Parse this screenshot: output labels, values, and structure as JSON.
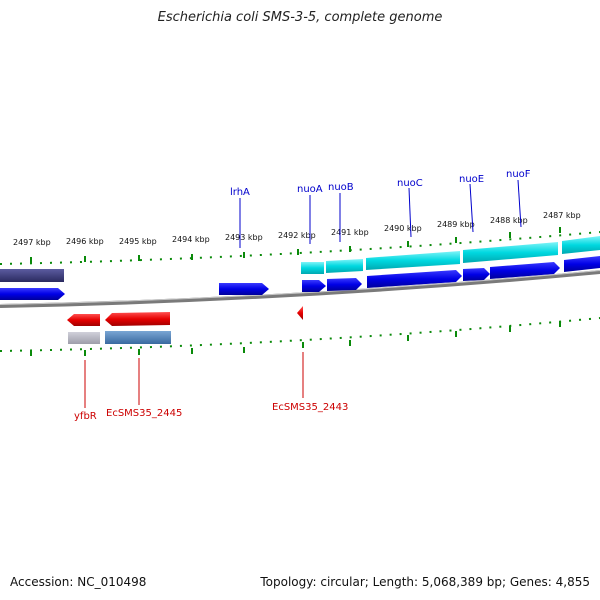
{
  "title": "Escherichia coli SMS-3-5, complete genome",
  "footer": {
    "accession": "Accession: NC_010498",
    "summary": "Topology: circular; Length: 5,068,389 bp; Genes: 4,855"
  },
  "ruler_labels": [
    "2497 kbp",
    "2496 kbp",
    "2495 kbp",
    "2494 kbp",
    "2493 kbp",
    "2492 kbp",
    "2491 kbp",
    "2490 kbp",
    "2489 kbp",
    "2488 kbp",
    "2487 kbp"
  ],
  "genes_top": [
    "lrhA",
    "nuoA",
    "nuoB",
    "nuoC",
    "nuoE",
    "nuoF"
  ],
  "genes_bottom": [
    "yfbR",
    "EcSMS35_2445",
    "EcSMS35_2443"
  ],
  "colors": {
    "cds_blue": "#0000e6",
    "cds_cyan": "#00d8e0",
    "cds_red": "#e60000",
    "rna_steel": "#4a7fb5",
    "pseudo_grey": "#b8b8c4",
    "dark_navy": "#3a3a78",
    "backbone": "#8a8a8a",
    "tick_green": "#0a8a0a"
  }
}
